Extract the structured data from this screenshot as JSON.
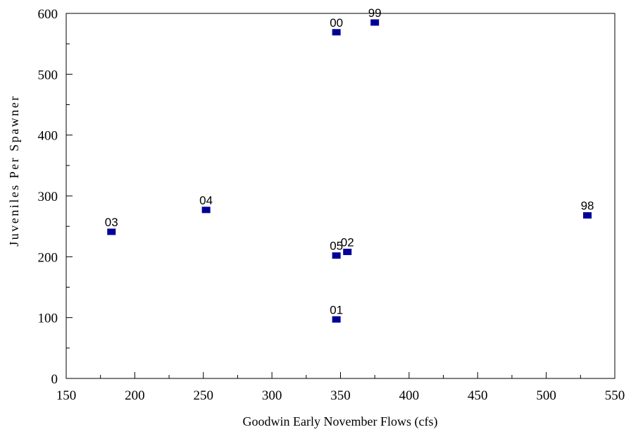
{
  "chart_data": {
    "type": "scatter",
    "title": "",
    "xlabel": "Goodwin Early November Flows (cfs)",
    "ylabel": "Juveniles Per Spawner",
    "xlim": [
      150,
      550
    ],
    "ylim": [
      0,
      600
    ],
    "x_ticks": [
      150,
      200,
      250,
      300,
      350,
      400,
      450,
      500,
      550
    ],
    "y_ticks": [
      0,
      100,
      200,
      300,
      400,
      500,
      600
    ],
    "grid": false,
    "marker": "square",
    "marker_color": "#000099",
    "points": [
      {
        "label": "00",
        "x": 347,
        "y": 569
      },
      {
        "label": "99",
        "x": 375,
        "y": 585
      },
      {
        "label": "04",
        "x": 252,
        "y": 277
      },
      {
        "label": "03",
        "x": 183,
        "y": 241
      },
      {
        "label": "98",
        "x": 530,
        "y": 268
      },
      {
        "label": "05",
        "x": 347,
        "y": 202
      },
      {
        "label": "02",
        "x": 355,
        "y": 208
      },
      {
        "label": "01",
        "x": 347,
        "y": 97
      }
    ]
  }
}
